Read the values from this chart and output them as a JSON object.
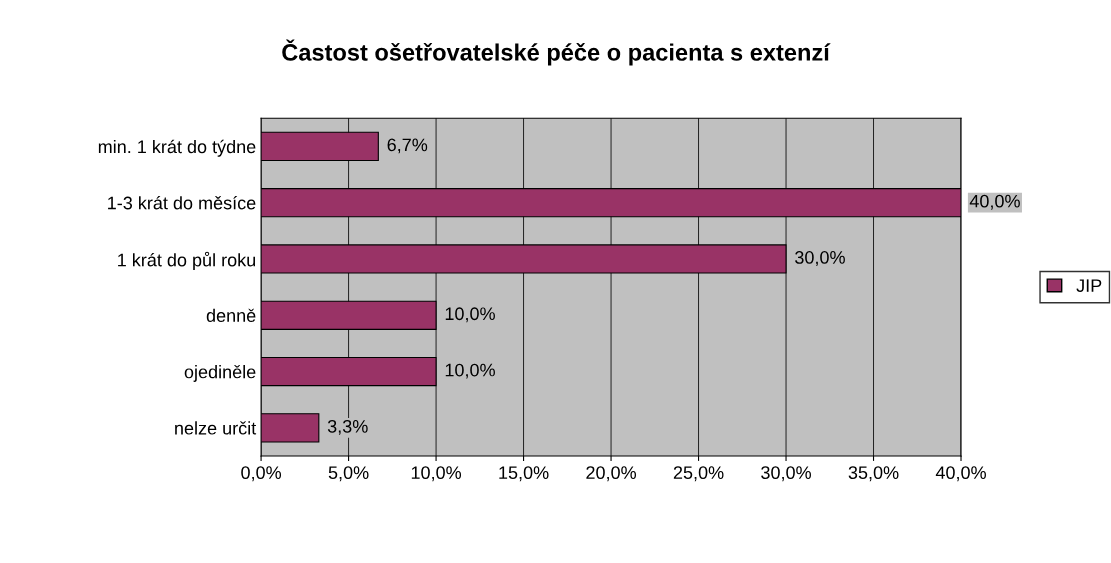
{
  "chart_data": {
    "type": "bar",
    "orientation": "horizontal",
    "title": "Častost ošetřovatelské péče o pacienta s extenzí",
    "categories": [
      "min. 1 krát do týdne",
      "1-3 krát do měsíce",
      "1 krát do půl roku",
      "denně",
      "ojediněle",
      "nelze určit"
    ],
    "series": [
      {
        "name": "JIP",
        "color": "#993366",
        "values": [
          6.7,
          40.0,
          30.0,
          10.0,
          10.0,
          3.3
        ],
        "value_labels": [
          "6,7%",
          "40,0%",
          "30,0%",
          "10,0%",
          "10,0%",
          "3,3%"
        ]
      }
    ],
    "xlim": [
      0,
      40
    ],
    "xticks": [
      {
        "value": 0,
        "label": "0,0%"
      },
      {
        "value": 5,
        "label": "5,0%"
      },
      {
        "value": 10,
        "label": "10,0%"
      },
      {
        "value": 15,
        "label": "15,0%"
      },
      {
        "value": 20,
        "label": "20,0%"
      },
      {
        "value": 25,
        "label": "25,0%"
      },
      {
        "value": 30,
        "label": "30,0%"
      },
      {
        "value": 35,
        "label": "35,0%"
      },
      {
        "value": 40,
        "label": "40,0%"
      }
    ],
    "grid": "x",
    "legend": "right"
  }
}
